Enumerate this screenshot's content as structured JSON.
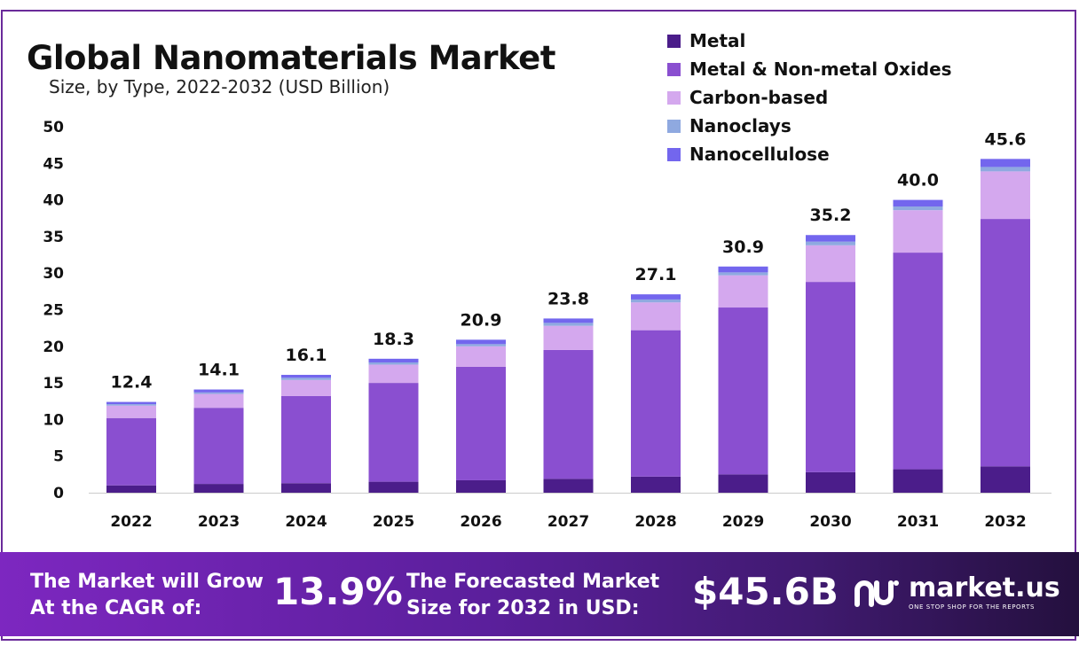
{
  "title": "Global Nanomaterials Market",
  "subtitle": "Size, by Type, 2022-2032 (USD Billion)",
  "colors": {
    "metal": "#4b1d8a",
    "oxides": "#8a4fd0",
    "carbon": "#d4a8ee",
    "nanoclays": "#8fa9e0",
    "nanocellulose": "#7366ee",
    "frame": "#6a2a9a"
  },
  "chart_data": {
    "type": "bar",
    "stacked": true,
    "title": "Global Nanomaterials Market",
    "subtitle": "Size, by Type, 2022-2032 (USD Billion)",
    "xlabel": "",
    "ylabel": "",
    "ylim": [
      0,
      50
    ],
    "yticks": [
      0,
      5,
      10,
      15,
      20,
      25,
      30,
      35,
      40,
      45,
      50
    ],
    "grid": false,
    "legend_position": "top-right",
    "categories": [
      "2022",
      "2023",
      "2024",
      "2025",
      "2026",
      "2027",
      "2028",
      "2029",
      "2030",
      "2031",
      "2032"
    ],
    "totals": [
      "12.4",
      "14.1",
      "16.1",
      "18.3",
      "20.9",
      "23.8",
      "27.1",
      "30.9",
      "35.2",
      "40.0",
      "45.6"
    ],
    "series": [
      {
        "name": "Metal",
        "color_key": "metal",
        "values": [
          1.0,
          1.2,
          1.3,
          1.5,
          1.7,
          1.9,
          2.2,
          2.5,
          2.8,
          3.2,
          3.6
        ]
      },
      {
        "name": "Metal & Non-metal Oxides",
        "color_key": "oxides",
        "values": [
          9.2,
          10.4,
          11.9,
          13.5,
          15.5,
          17.6,
          20.0,
          22.8,
          26.0,
          29.6,
          33.8
        ]
      },
      {
        "name": "Carbon-based",
        "color_key": "carbon",
        "values": [
          1.7,
          1.9,
          2.2,
          2.5,
          2.8,
          3.3,
          3.8,
          4.4,
          5.0,
          5.8,
          6.5
        ]
      },
      {
        "name": "Nanoclays",
        "color_key": "nanoclays",
        "values": [
          0.2,
          0.2,
          0.3,
          0.3,
          0.3,
          0.4,
          0.4,
          0.4,
          0.5,
          0.5,
          0.6
        ]
      },
      {
        "name": "Nanocellulose",
        "color_key": "nanocellulose",
        "values": [
          0.3,
          0.4,
          0.4,
          0.5,
          0.6,
          0.6,
          0.7,
          0.8,
          0.9,
          0.9,
          1.1
        ]
      }
    ]
  },
  "banner": {
    "cagr_text_line1": "The Market will Grow",
    "cagr_text_line2": "At the CAGR of:",
    "cagr_value": "13.9%",
    "forecast_text_line1": "The Forecasted Market",
    "forecast_text_line2": "Size for 2032 in USD:",
    "forecast_value": "$45.6B",
    "brand_name": "market.us",
    "brand_tagline": "ONE STOP SHOP FOR THE REPORTS"
  }
}
